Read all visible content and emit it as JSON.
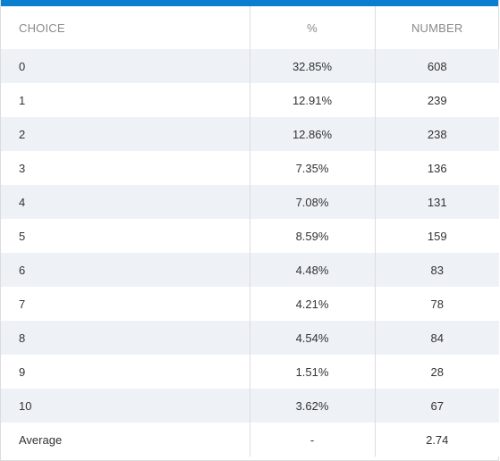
{
  "table": {
    "headers": {
      "choice": "CHOICE",
      "percent": "%",
      "number": "NUMBER"
    },
    "rows": [
      {
        "choice": "0",
        "percent": "32.85%",
        "number": "608"
      },
      {
        "choice": "1",
        "percent": "12.91%",
        "number": "239"
      },
      {
        "choice": "2",
        "percent": "12.86%",
        "number": "238"
      },
      {
        "choice": "3",
        "percent": "7.35%",
        "number": "136"
      },
      {
        "choice": "4",
        "percent": "7.08%",
        "number": "131"
      },
      {
        "choice": "5",
        "percent": "8.59%",
        "number": "159"
      },
      {
        "choice": "6",
        "percent": "4.48%",
        "number": "83"
      },
      {
        "choice": "7",
        "percent": "4.21%",
        "number": "78"
      },
      {
        "choice": "8",
        "percent": "4.54%",
        "number": "84"
      },
      {
        "choice": "9",
        "percent": "1.51%",
        "number": "28"
      },
      {
        "choice": "10",
        "percent": "3.62%",
        "number": "67"
      },
      {
        "choice": "Average",
        "percent": "-",
        "number": "2.74"
      }
    ]
  },
  "colors": {
    "accent_bar": "#0a7fcf",
    "stripe": "#eef2f6",
    "header_text": "#8a8a8a"
  }
}
